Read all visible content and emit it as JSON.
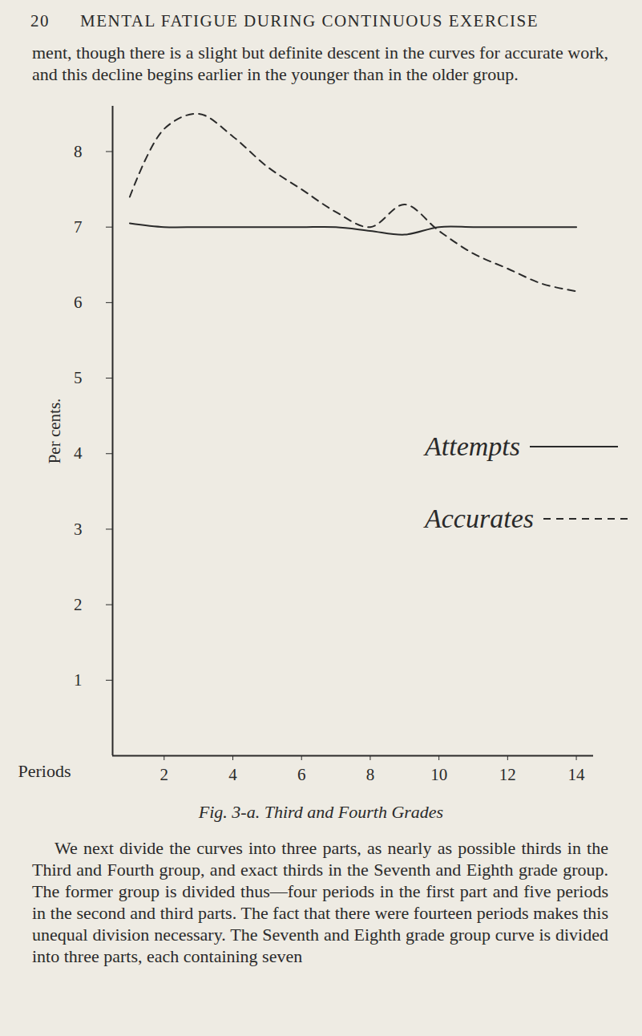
{
  "header": {
    "page_number": 20,
    "running_title": "MENTAL FATIGUE DURING CONTINUOUS EXERCISE"
  },
  "paragraph_before": "ment, though there is a slight but definite descent in the curves for accurate work, and this decline begins earlier in the younger than in the older group.",
  "chart_data": {
    "type": "line",
    "title": "Fig. 3-a. Third and Fourth Grades",
    "x_label": "Periods",
    "y_label": "Per cents.",
    "x": [
      1,
      2,
      3,
      4,
      5,
      6,
      7,
      8,
      9,
      10,
      11,
      12,
      13,
      14
    ],
    "xlim": [
      0.5,
      14.5
    ],
    "xticks": [
      2,
      4,
      6,
      8,
      10,
      12,
      14
    ],
    "ylim": [
      0,
      8.6
    ],
    "yticks": [
      1,
      2,
      3,
      4,
      5,
      6,
      7,
      8
    ],
    "grid": false,
    "legend": "center",
    "series": [
      {
        "name": "Attempts",
        "color": "#2a2a2a",
        "line_style": "solid",
        "values": [
          7.05,
          7.0,
          7.0,
          7.0,
          7.0,
          7.0,
          7.0,
          6.95,
          6.9,
          7.0,
          7.0,
          7.0,
          7.0,
          7.0
        ]
      },
      {
        "name": "Accurates",
        "color": "#2a2a2a",
        "line_style": "dashed",
        "values": [
          7.4,
          8.3,
          8.5,
          8.2,
          7.8,
          7.5,
          7.2,
          7.0,
          7.3,
          6.95,
          6.65,
          6.45,
          6.25,
          6.15
        ]
      }
    ]
  },
  "paragraph_after": "We next divide the curves into three parts, as nearly as possible thirds in the Third and Fourth group, and exact thirds in the Seventh and Eighth grade group. The former group is divided thus—four periods in the first part and five periods in the second and third parts. The fact that there were fourteen periods makes this unequal division necessary. The Seventh and Eighth grade group curve is divided into three parts, each containing seven"
}
